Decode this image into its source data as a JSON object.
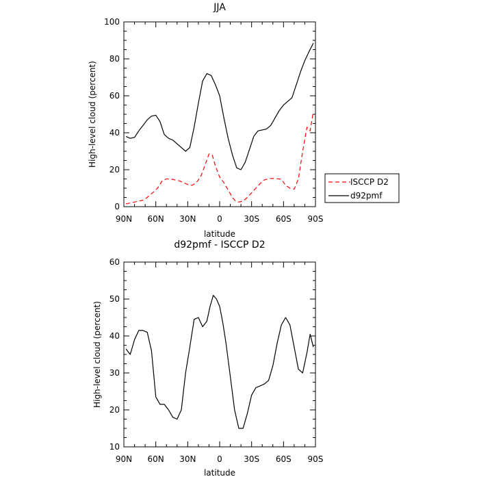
{
  "chart_data": [
    {
      "type": "line",
      "title": "JJA",
      "xlabel": "latitude",
      "ylabel": "High-level cloud (percent)",
      "xlim": [
        90,
        -90
      ],
      "ylim": [
        0,
        100
      ],
      "xticks": [
        90,
        60,
        30,
        0,
        -30,
        -60,
        -90
      ],
      "xtick_labels": [
        "90N",
        "60N",
        "30N",
        "0",
        "30S",
        "60S",
        "90S"
      ],
      "yticks": [
        0,
        20,
        40,
        60,
        80,
        100
      ],
      "legend_position": "outside-right",
      "series": [
        {
          "name": "ISCCP D2",
          "color": "#ff0000",
          "dash": "dashed",
          "x": [
            88,
            84,
            80,
            76,
            72,
            68,
            64,
            60,
            57,
            54,
            50,
            46,
            42,
            38,
            34,
            30,
            26,
            22,
            18,
            14,
            10,
            7,
            4,
            0,
            -4,
            -8,
            -12,
            -15,
            -18,
            -22,
            -26,
            -30,
            -34,
            -38,
            -42,
            -46,
            -50,
            -54,
            -58,
            -62,
            -66,
            -70,
            -74,
            -78,
            -82,
            -85,
            -88
          ],
          "y": [
            1.5,
            2,
            2.5,
            3,
            3.5,
            5,
            7,
            9,
            11,
            14,
            15,
            15,
            14.5,
            14,
            13,
            12,
            11.5,
            13,
            16,
            22,
            28.5,
            28,
            22,
            16,
            13,
            9,
            5,
            3,
            2.5,
            3,
            5,
            7.5,
            10,
            12.5,
            14.5,
            15.2,
            15.3,
            15.1,
            14.8,
            11.5,
            10,
            9.5,
            15,
            30,
            43,
            41,
            51.5
          ]
        },
        {
          "name": "d92pmf",
          "color": "#000000",
          "dash": "solid",
          "x": [
            88,
            84,
            80,
            76,
            72,
            68,
            64,
            60,
            56,
            52,
            48,
            44,
            40,
            36,
            32,
            28,
            24,
            20,
            16,
            12,
            8,
            4,
            0,
            -4,
            -8,
            -12,
            -16,
            -20,
            -24,
            -28,
            -32,
            -36,
            -40,
            -44,
            -48,
            -52,
            -56,
            -60,
            -64,
            -68,
            -72,
            -76,
            -80,
            -84,
            -88
          ],
          "y": [
            38,
            37,
            37.5,
            41,
            44,
            47,
            49,
            49.5,
            46,
            39,
            37,
            36,
            34,
            32,
            30,
            32,
            43,
            56,
            68,
            72,
            71,
            66,
            60,
            48,
            37,
            28,
            21,
            20,
            24,
            31,
            38,
            41,
            41.5,
            42,
            44,
            48,
            52,
            55,
            57,
            59,
            66,
            73,
            79,
            84,
            88.5
          ]
        }
      ]
    },
    {
      "type": "line",
      "title": "d92pmf - ISCCP D2",
      "xlabel": "latitude",
      "ylabel": "High-level cloud (percent)",
      "xlim": [
        90,
        -90
      ],
      "ylim": [
        10,
        60
      ],
      "xticks": [
        90,
        60,
        30,
        0,
        -30,
        -60,
        -90
      ],
      "xtick_labels": [
        "90N",
        "60N",
        "30N",
        "0",
        "30S",
        "60S",
        "90S"
      ],
      "yticks": [
        10,
        20,
        30,
        40,
        50,
        60
      ],
      "series": [
        {
          "color": "#000000",
          "dash": "solid",
          "x": [
            88,
            84,
            80,
            76,
            72,
            68,
            64,
            60,
            56,
            52,
            48,
            44,
            40,
            36,
            32,
            28,
            24,
            20,
            16,
            12,
            9,
            6,
            3,
            0,
            -3,
            -6,
            -10,
            -14,
            -18,
            -22,
            -26,
            -30,
            -34,
            -38,
            -42,
            -46,
            -50,
            -54,
            -58,
            -62,
            -66,
            -70,
            -74,
            -78,
            -82,
            -85,
            -88
          ],
          "y": [
            36.5,
            35,
            39,
            41.5,
            41.5,
            41,
            36,
            23.5,
            21.5,
            21.5,
            20,
            18,
            17.5,
            20,
            30,
            37,
            44.5,
            45,
            42.5,
            44,
            48,
            51,
            50,
            48,
            43.5,
            38,
            29,
            20,
            15,
            15,
            19,
            24,
            26,
            26.5,
            27,
            28,
            32,
            38,
            43,
            45,
            43,
            37,
            31,
            30,
            35.5,
            40.5,
            37
          ]
        }
      ]
    }
  ]
}
